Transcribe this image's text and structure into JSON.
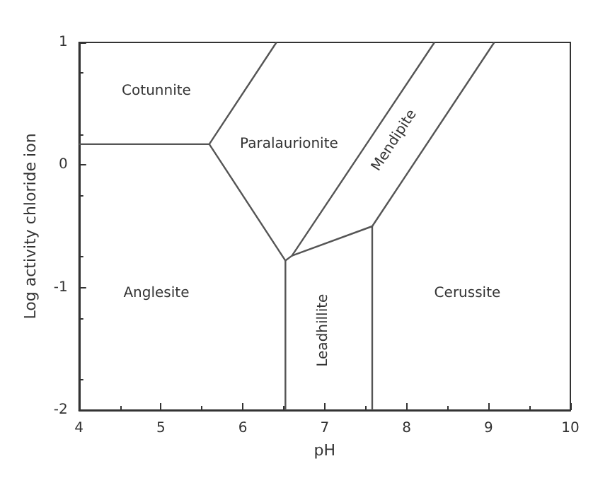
{
  "chart_data": {
    "type": "line",
    "xlabel": "pH",
    "ylabel": "Log activity chloride ion",
    "xlim": [
      4,
      10
    ],
    "xticks": [
      4,
      5,
      6,
      7,
      8,
      9,
      10
    ],
    "ylim": [
      -2,
      1
    ],
    "yticks": [
      -2,
      -1,
      0,
      1
    ],
    "marker": "none",
    "line_style": "solid",
    "series": [
      {
        "color": "#555555",
        "x": [
          4,
          5.59,
          6.41
        ],
        "values": [
          0.17,
          0.17,
          1
        ]
      },
      {
        "color": "#555555",
        "x": [
          5.59,
          6.52,
          6.6,
          8.34
        ],
        "values": [
          0.17,
          -0.78,
          -0.74,
          1
        ]
      },
      {
        "color": "#555555",
        "x": [
          6.52,
          6.52
        ],
        "values": [
          -0.78,
          -2
        ]
      },
      {
        "color": "#555555",
        "x": [
          6.6,
          7.58,
          7.58
        ],
        "values": [
          -0.74,
          -0.5,
          -2
        ]
      },
      {
        "color": "#555555",
        "x": [
          7.58,
          9.07
        ],
        "values": [
          -0.5,
          1
        ]
      }
    ],
    "annotations": [
      "Cotunnite",
      "Paralaurionite",
      "Mendipite",
      "Anglesite",
      "Leadhillite",
      "Cerussite"
    ]
  }
}
